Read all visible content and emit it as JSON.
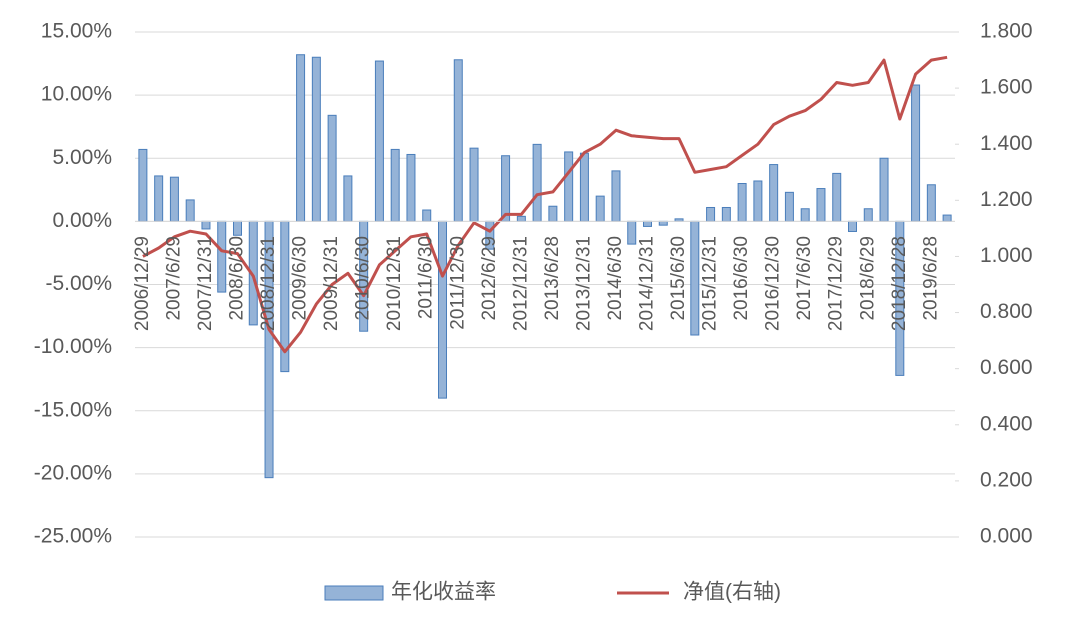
{
  "chart_data": {
    "type": "bar_line",
    "categories": [
      "2006/12/29",
      null,
      "2007/6/29",
      null,
      "2007/12/31",
      null,
      "2008/6/30",
      null,
      "2008/12/31",
      null,
      "2009/6/30",
      null,
      "2009/12/31",
      null,
      "2010/6/30",
      null,
      "2010/12/31",
      null,
      "2011/6/30",
      null,
      "2011/12/30",
      null,
      "2012/6/29",
      null,
      "2012/12/31",
      null,
      "2013/6/28",
      null,
      "2013/12/31",
      null,
      "2014/6/30",
      null,
      "2014/12/31",
      null,
      "2015/6/30",
      null,
      "2015/12/31",
      null,
      "2016/6/30",
      null,
      "2016/12/30",
      null,
      "2017/6/30",
      null,
      "2017/12/29",
      null,
      "2018/6/29",
      null,
      "2018/12/28",
      null,
      "2019/6/28",
      null
    ],
    "series": [
      {
        "name": "年化收益率",
        "type": "bar",
        "color": "#95b3d7",
        "edge_color": "#4a7ebb",
        "values": [
          5.7,
          3.6,
          3.5,
          1.7,
          -0.6,
          -5.6,
          -1.1,
          -8.2,
          -20.3,
          -11.9,
          13.2,
          13.0,
          8.4,
          3.6,
          -8.7,
          12.7,
          5.7,
          5.3,
          0.9,
          -14.0,
          12.8,
          5.8,
          -2.2,
          5.2,
          0.4,
          6.1,
          1.2,
          5.5,
          5.4,
          2.0,
          4.0,
          -1.8,
          -0.4,
          -0.3,
          0.2,
          -9.0,
          1.1,
          1.1,
          3.0,
          3.2,
          4.5,
          2.3,
          1.0,
          2.6,
          3.8,
          -0.8,
          1.0,
          5.0,
          -12.2,
          10.8,
          2.9,
          0.5
        ]
      },
      {
        "name": "净值(右轴)",
        "type": "line",
        "axis": "y2",
        "color": "#c0504d",
        "values": [
          1.0,
          1.03,
          1.07,
          1.09,
          1.08,
          1.02,
          1.01,
          0.93,
          0.74,
          0.66,
          0.73,
          0.83,
          0.9,
          0.94,
          0.86,
          0.97,
          1.02,
          1.07,
          1.08,
          0.93,
          1.04,
          1.12,
          1.09,
          1.15,
          1.15,
          1.22,
          1.23,
          1.3,
          1.37,
          1.4,
          1.45,
          1.43,
          1.425,
          1.42,
          1.42,
          1.3,
          1.31,
          1.32,
          1.36,
          1.4,
          1.47,
          1.5,
          1.52,
          1.56,
          1.62,
          1.61,
          1.62,
          1.7,
          1.49,
          1.65,
          1.7,
          1.71
        ]
      }
    ],
    "ylim": [
      -25,
      15
    ],
    "yticks": [
      {
        "value": -25,
        "label": "-25.00%"
      },
      {
        "value": -20,
        "label": "-20.00%"
      },
      {
        "value": -15,
        "label": "-15.00%"
      },
      {
        "value": -10,
        "label": "-10.00%"
      },
      {
        "value": -5,
        "label": "-5.00%"
      },
      {
        "value": 0,
        "label": "0.00%"
      },
      {
        "value": 5,
        "label": "5.00%"
      },
      {
        "value": 10,
        "label": "10.00%"
      },
      {
        "value": 15,
        "label": "15.00%"
      }
    ],
    "y2lim": [
      0,
      1.8
    ],
    "y2ticks": [
      {
        "value": 0,
        "label": "0.000"
      },
      {
        "value": 0.2,
        "label": "0.200"
      },
      {
        "value": 0.4,
        "label": "0.400"
      },
      {
        "value": 0.6,
        "label": "0.600"
      },
      {
        "value": 0.8,
        "label": "0.800"
      },
      {
        "value": 1.0,
        "label": "1.000"
      },
      {
        "value": 1.2,
        "label": "1.200"
      },
      {
        "value": 1.4,
        "label": "1.400"
      },
      {
        "value": 1.6,
        "label": "1.600"
      },
      {
        "value": 1.8,
        "label": "1.800"
      }
    ],
    "grid": true,
    "legend": "bottom"
  }
}
